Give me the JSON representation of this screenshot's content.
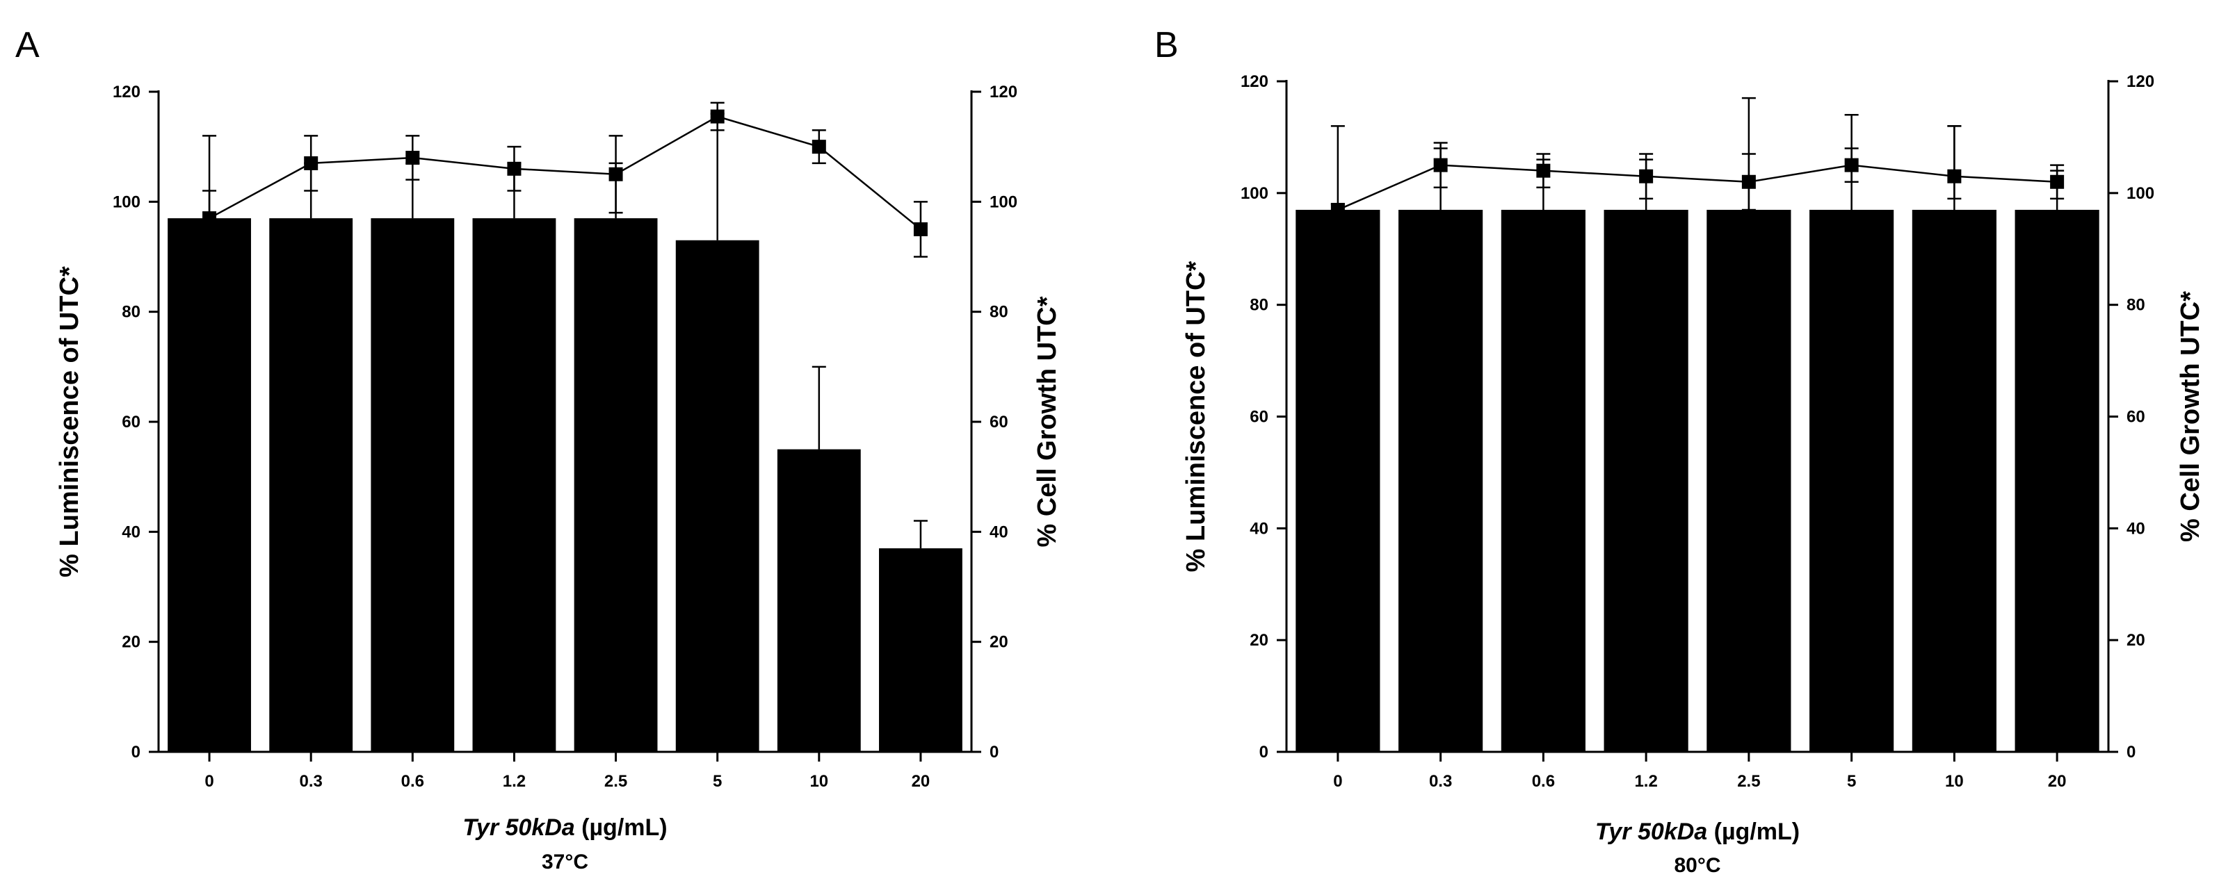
{
  "chart_data": [
    {
      "type": "bar",
      "panel_label": "A",
      "categories": [
        "0",
        "0.3",
        "0.6",
        "1.2",
        "2.5",
        "5",
        "10",
        "20"
      ],
      "xlabel_italic": "Tyr 50kDa",
      "xlabel_unit": "(µg/mL)",
      "condition_label": "37°C",
      "ylabel_left": "% Luminiscence of UTC*",
      "ylabel_right": "% Cell Growth UTC*",
      "ylim": [
        0,
        120
      ],
      "yticks": [
        0,
        20,
        40,
        60,
        80,
        100,
        120
      ],
      "bars": {
        "axis": "left",
        "values": [
          97,
          97,
          97,
          97,
          97,
          93,
          55,
          37
        ],
        "error": [
          15,
          10,
          10,
          10,
          10,
          23,
          15,
          5
        ]
      },
      "line": {
        "axis": "right",
        "marker": "square",
        "values": [
          97,
          107,
          108,
          106,
          105,
          115.5,
          110,
          95
        ],
        "error_up": [
          5,
          5,
          4,
          4,
          7,
          2.5,
          3,
          5
        ],
        "error_down": [
          5,
          5,
          4,
          4,
          7,
          2.5,
          3,
          5
        ]
      },
      "grid": false
    },
    {
      "type": "bar",
      "panel_label": "B",
      "categories": [
        "0",
        "0.3",
        "0.6",
        "1.2",
        "2.5",
        "5",
        "10",
        "20"
      ],
      "xlabel_italic": "Tyr 50kDa",
      "xlabel_unit": "(µg/mL)",
      "condition_label": "80°C",
      "ylabel_left": "% Luminiscence of UTC*",
      "ylabel_right": "% Cell Growth UTC*",
      "ylim": [
        0,
        120
      ],
      "yticks": [
        0,
        20,
        40,
        60,
        80,
        100,
        120
      ],
      "bars": {
        "axis": "left",
        "values": [
          97,
          97,
          97,
          97,
          97,
          97,
          97,
          97
        ],
        "error": [
          15,
          11,
          9,
          9,
          20,
          17,
          15,
          7
        ]
      },
      "line": {
        "axis": "right",
        "marker": "square",
        "values": [
          97,
          105,
          104,
          103,
          102,
          105,
          103,
          102
        ],
        "error_up": [
          1,
          4,
          3,
          4,
          5,
          3,
          9,
          3
        ],
        "error_down": [
          1,
          4,
          3,
          4,
          5,
          3,
          4,
          3
        ]
      },
      "grid": false
    }
  ]
}
